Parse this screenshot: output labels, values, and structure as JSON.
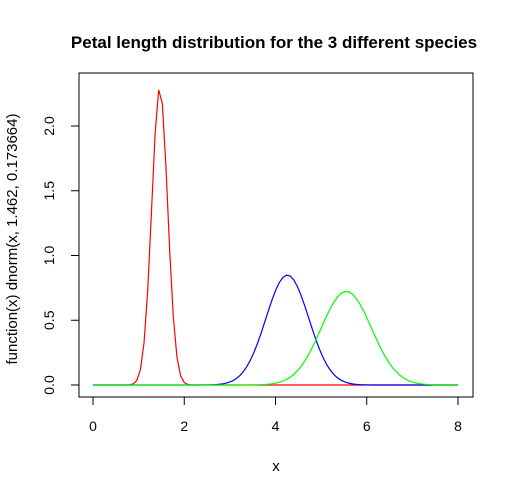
{
  "chart_data": {
    "type": "line",
    "title": "Petal length distribution for the 3 different species",
    "xlabel": "x",
    "ylabel": "function(x) dnorm(x, 1.462, 0.173664)",
    "xlim": [
      0,
      8
    ],
    "ylim": [
      0,
      2.3
    ],
    "x_ticks": [
      0,
      2,
      4,
      6,
      8
    ],
    "x_tick_labels": [
      "0",
      "2",
      "4",
      "6",
      "8"
    ],
    "y_ticks": [
      0.0,
      0.5,
      1.0,
      1.5,
      2.0
    ],
    "y_tick_labels": [
      "0.0",
      "0.5",
      "1.0",
      "1.5",
      "2.0"
    ],
    "grid": false,
    "series": [
      {
        "color": "#ff0000",
        "mean": 1.462,
        "sd": 0.173664,
        "peak": 2.297
      },
      {
        "color": "#0000ff",
        "mean": 4.26,
        "sd": 0.469911,
        "peak": 0.849
      },
      {
        "color": "#00ff00",
        "mean": 5.552,
        "sd": 0.551895,
        "peak": 0.723
      }
    ],
    "x_range_plotted": [
      0,
      8
    ]
  }
}
